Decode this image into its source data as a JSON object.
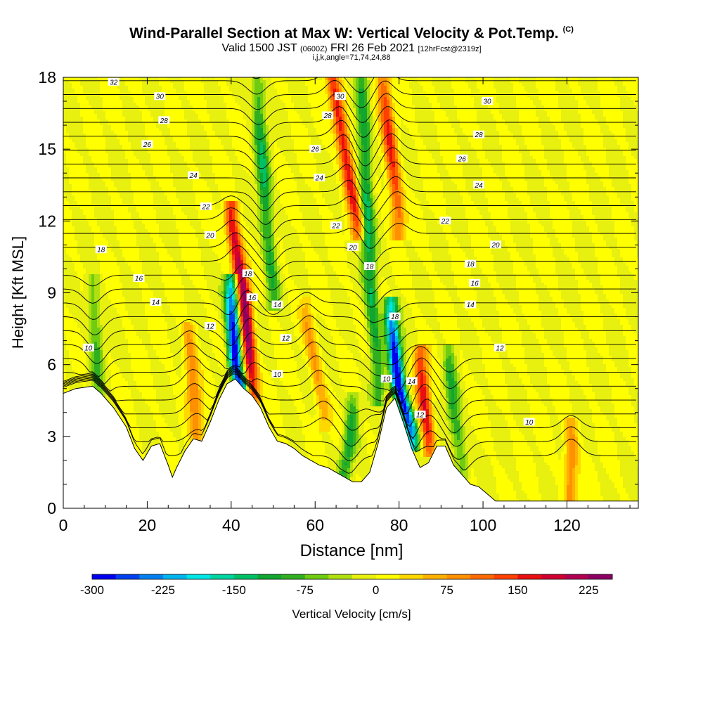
{
  "header": {
    "title": "Wind-Parallel Section at Max W: Vertical Velocity & Pot.Temp.",
    "title_mark": "(C)",
    "valid_prefix": "Valid 1500 JST",
    "valid_z": "(0600Z)",
    "valid_date": "FRI 26 Feb 2021",
    "forecast": "[12hrFcst@2319z]",
    "indices": "i,j,k,angle=71,74,24,88"
  },
  "colorbar": {
    "title": "Vertical Velocity [cm/s]",
    "tick_labels": [
      "-300",
      "-225",
      "-150",
      "-75",
      "0",
      "75",
      "150",
      "225"
    ],
    "tick_values": [
      -300,
      -225,
      -150,
      -75,
      0,
      75,
      150,
      225
    ],
    "min": -300,
    "max": 250,
    "step": 25,
    "colors": [
      "#0000f0",
      "#0040f0",
      "#0080f0",
      "#00b4ee",
      "#00e6e6",
      "#00d4a0",
      "#00c066",
      "#10a630",
      "#30b020",
      "#70cc10",
      "#b0e010",
      "#e8f010",
      "#ffff00",
      "#ffd800",
      "#ffb000",
      "#ff9000",
      "#ff6a00",
      "#ff4000",
      "#e81010",
      "#d00030",
      "#b00050",
      "#8c0064"
    ]
  },
  "chart_data": {
    "type": "heatmap",
    "title": "Wind-Parallel Section at Max W: Vertical Velocity & Pot.Temp.",
    "xlabel": "Distance [nm]",
    "ylabel": "Height [Kft MSL]",
    "xlim": [
      0,
      137
    ],
    "ylim": [
      0,
      18
    ],
    "x_ticks": [
      0,
      20,
      40,
      60,
      80,
      100,
      120
    ],
    "y_ticks": [
      0,
      3,
      6,
      9,
      12,
      15,
      18
    ],
    "x_tick_labels": [
      "0",
      "20",
      "40",
      "60",
      "80",
      "100",
      "120"
    ],
    "y_tick_labels": [
      "0",
      "3",
      "6",
      "9",
      "12",
      "15",
      "18"
    ],
    "filled_field": "Vertical Velocity [cm/s]",
    "contour_field": "Potential Temperature",
    "terrain_kft": {
      "x": [
        0,
        3,
        7,
        9,
        12,
        15,
        17,
        19,
        21,
        23,
        25,
        26,
        27,
        29,
        31,
        33,
        35,
        37,
        39,
        41,
        43,
        45,
        47,
        49,
        51,
        53,
        55,
        57,
        59,
        61,
        63,
        65,
        67,
        69,
        71,
        73,
        75,
        77,
        79,
        81,
        83,
        85,
        87,
        89,
        91,
        93,
        95,
        97,
        99,
        101,
        103,
        105,
        110,
        120,
        130,
        137
      ],
      "y": [
        4.8,
        5.0,
        5.1,
        4.8,
        4.2,
        3.4,
        2.5,
        2.0,
        2.6,
        2.7,
        1.8,
        1.3,
        1.7,
        2.4,
        2.9,
        2.8,
        3.6,
        4.5,
        5.2,
        5.4,
        5.0,
        4.7,
        4.2,
        3.4,
        2.8,
        2.7,
        2.5,
        2.2,
        2.0,
        1.8,
        1.7,
        1.5,
        1.3,
        1.1,
        1.1,
        1.5,
        2.7,
        4.2,
        4.6,
        3.6,
        2.5,
        1.7,
        1.9,
        2.6,
        2.6,
        1.8,
        1.4,
        1.0,
        0.9,
        0.6,
        0.3,
        0.3,
        0.3,
        0.3,
        0.3,
        0.3
      ]
    },
    "updraft_bands": [
      {
        "x": [
          45,
          43,
          40
        ],
        "y": [
          5,
          9,
          12
        ],
        "peak_cm_s": 240
      },
      {
        "x": [
          70,
          67,
          64
        ],
        "y": [
          12,
          15,
          18
        ],
        "peak_cm_s": 175
      },
      {
        "x": [
          87,
          86,
          85
        ],
        "y": [
          3,
          4.5,
          6
        ],
        "peak_cm_s": 175
      },
      {
        "x": [
          80,
          78,
          76
        ],
        "y": [
          12,
          15,
          18
        ],
        "peak_cm_s": 150
      },
      {
        "x": [
          32,
          31,
          30
        ],
        "y": [
          3,
          5,
          7
        ],
        "peak_cm_s": 100
      },
      {
        "x": [
          121,
          121,
          121
        ],
        "y": [
          0.5,
          1.5,
          3
        ],
        "peak_cm_s": 100
      },
      {
        "x": [
          62,
          60,
          58
        ],
        "y": [
          4,
          6,
          8
        ],
        "peak_cm_s": 75
      }
    ],
    "downdraft_bands": [
      {
        "x": [
          43,
          41,
          40
        ],
        "y": [
          4.5,
          6,
          9
        ],
        "peak_cm_s": -300
      },
      {
        "x": [
          83,
          80,
          78
        ],
        "y": [
          3.2,
          5,
          8
        ],
        "peak_cm_s": -300
      },
      {
        "x": [
          50,
          48,
          46
        ],
        "y": [
          9,
          13,
          18
        ],
        "peak_cm_s": -120
      },
      {
        "x": [
          75,
          73,
          71
        ],
        "y": [
          5,
          10,
          18
        ],
        "peak_cm_s": -130
      },
      {
        "x": [
          67,
          68,
          69
        ],
        "y": [
          1.5,
          2.5,
          4
        ],
        "peak_cm_s": -110
      },
      {
        "x": [
          95,
          93,
          92
        ],
        "y": [
          2,
          4,
          6
        ],
        "peak_cm_s": -100
      },
      {
        "x": [
          8,
          8,
          7
        ],
        "y": [
          5,
          7,
          9
        ],
        "peak_cm_s": -80
      }
    ],
    "isentrope_labels": [
      {
        "text": "32",
        "x": 12,
        "y": 17.8
      },
      {
        "text": "30",
        "x": 23,
        "y": 17.2
      },
      {
        "text": "28",
        "x": 24,
        "y": 16.2
      },
      {
        "text": "26",
        "x": 20,
        "y": 15.2
      },
      {
        "text": "24",
        "x": 31,
        "y": 13.9
      },
      {
        "text": "22",
        "x": 34,
        "y": 12.6
      },
      {
        "text": "20",
        "x": 35,
        "y": 11.4
      },
      {
        "text": "18",
        "x": 9,
        "y": 10.8
      },
      {
        "text": "16",
        "x": 18,
        "y": 9.6
      },
      {
        "text": "14",
        "x": 22,
        "y": 8.6
      },
      {
        "text": "12",
        "x": 35,
        "y": 7.6
      },
      {
        "text": "10",
        "x": 6,
        "y": 6.7
      },
      {
        "text": "18",
        "x": 44,
        "y": 9.8
      },
      {
        "text": "16",
        "x": 45,
        "y": 8.8
      },
      {
        "text": "14",
        "x": 51,
        "y": 8.5
      },
      {
        "text": "12",
        "x": 53,
        "y": 7.1
      },
      {
        "text": "10",
        "x": 51,
        "y": 5.6
      },
      {
        "text": "30",
        "x": 66,
        "y": 17.2
      },
      {
        "text": "28",
        "x": 63,
        "y": 16.4
      },
      {
        "text": "26",
        "x": 60,
        "y": 15.0
      },
      {
        "text": "24",
        "x": 61,
        "y": 13.8
      },
      {
        "text": "22",
        "x": 65,
        "y": 11.8
      },
      {
        "text": "20",
        "x": 69,
        "y": 10.9
      },
      {
        "text": "18",
        "x": 73,
        "y": 10.1
      },
      {
        "text": "18",
        "x": 79,
        "y": 8.0
      },
      {
        "text": "10",
        "x": 77,
        "y": 5.4
      },
      {
        "text": "14",
        "x": 83,
        "y": 5.3
      },
      {
        "text": "12",
        "x": 85,
        "y": 3.9
      },
      {
        "text": "30",
        "x": 101,
        "y": 17.0
      },
      {
        "text": "28",
        "x": 99,
        "y": 15.6
      },
      {
        "text": "26",
        "x": 95,
        "y": 14.6
      },
      {
        "text": "24",
        "x": 99,
        "y": 13.5
      },
      {
        "text": "22",
        "x": 91,
        "y": 12.0
      },
      {
        "text": "20",
        "x": 103,
        "y": 11.0
      },
      {
        "text": "18",
        "x": 97,
        "y": 10.2
      },
      {
        "text": "16",
        "x": 98,
        "y": 9.4
      },
      {
        "text": "14",
        "x": 97,
        "y": 8.5
      },
      {
        "text": "12",
        "x": 104,
        "y": 6.7
      },
      {
        "text": "10",
        "x": 111,
        "y": 3.6
      }
    ]
  }
}
